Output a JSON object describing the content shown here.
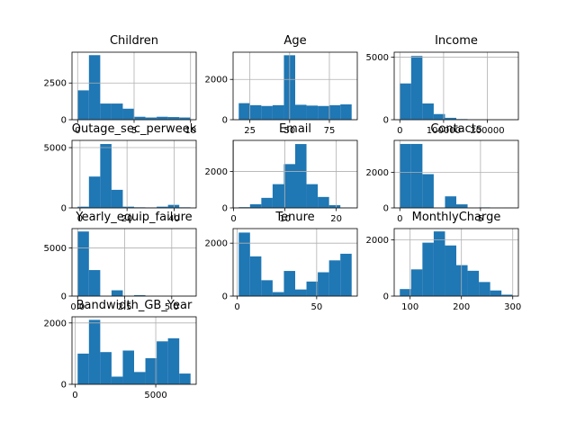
{
  "chart_data": [
    {
      "type": "histogram",
      "title": "Children",
      "bins": [
        0,
        1,
        2,
        3,
        4,
        5,
        6,
        7,
        8,
        9,
        10
      ],
      "values": [
        2000,
        4400,
        1100,
        1100,
        750,
        200,
        150,
        200,
        180,
        150
      ],
      "color": "#1f77b4",
      "xlim": [
        -0.5,
        10.5
      ],
      "ylim": [
        0,
        4600
      ],
      "xticks": [
        0,
        5,
        10
      ],
      "yticks": [
        0,
        2500
      ],
      "grid": true
    },
    {
      "type": "histogram",
      "title": "Age",
      "bins": [
        18,
        25.1,
        32.2,
        39.3,
        46.4,
        53.5,
        60.6,
        67.7,
        74.8,
        81.9,
        89
      ],
      "values": [
        820,
        720,
        680,
        720,
        3200,
        740,
        700,
        680,
        720,
        760
      ],
      "color": "#1f77b4",
      "xlim": [
        14.45,
        92.55
      ],
      "ylim": [
        0,
        3350
      ],
      "xticks": [
        25,
        50,
        75
      ],
      "yticks": [
        0,
        2000
      ],
      "grid": true
    },
    {
      "type": "histogram",
      "title": "Income",
      "bins": [
        0,
        25800,
        51600,
        77400,
        103200,
        129000,
        154800,
        180600,
        206400,
        232200,
        258000
      ],
      "values": [
        2900,
        5100,
        1300,
        450,
        150,
        50,
        20,
        10,
        5,
        5
      ],
      "color": "#1f77b4",
      "xlim": [
        -12900,
        270900
      ],
      "ylim": [
        0,
        5400
      ],
      "xticks": [
        0,
        100000,
        200000
      ],
      "yticks": [
        0,
        5000
      ],
      "grid": true
    },
    {
      "type": "histogram",
      "title": "Outage_sec_perweek",
      "bins": [
        -1,
        3.8,
        8.6,
        13.4,
        18.2,
        23,
        27.8,
        32.6,
        37.4,
        42.2,
        47
      ],
      "values": [
        100,
        2600,
        5300,
        1500,
        100,
        50,
        40,
        100,
        250,
        50
      ],
      "color": "#1f77b4",
      "xlim": [
        -3.4,
        49.4
      ],
      "ylim": [
        0,
        5600
      ],
      "xticks": [
        0,
        20,
        40
      ],
      "yticks": [
        0,
        5000
      ],
      "grid": true
    },
    {
      "type": "histogram",
      "title": "Email",
      "bins": [
        1,
        3.2,
        5.4,
        7.6,
        9.8,
        12,
        14.2,
        16.4,
        18.6,
        20.8,
        23
      ],
      "values": [
        40,
        200,
        550,
        1300,
        2400,
        3500,
        1300,
        600,
        150,
        20
      ],
      "color": "#1f77b4",
      "xlim": [
        -0.1,
        24.1
      ],
      "ylim": [
        0,
        3700
      ],
      "xticks": [
        0,
        10,
        20
      ],
      "yticks": [
        0,
        2000
      ],
      "grid": true
    },
    {
      "type": "histogram",
      "title": "Contacts",
      "bins": [
        0,
        0.7,
        1.4,
        2.1,
        2.8,
        3.5,
        4.2,
        4.9,
        5.6,
        6.3,
        7
      ],
      "values": [
        3600,
        3600,
        1900,
        0,
        650,
        200,
        0,
        30,
        0,
        5
      ],
      "color": "#1f77b4",
      "xlim": [
        -0.35,
        7.35
      ],
      "ylim": [
        0,
        3800
      ],
      "xticks": [
        0,
        5
      ],
      "yticks": [
        0,
        2000
      ],
      "grid": true
    },
    {
      "type": "histogram",
      "title": "Yearly_equip_failure",
      "bins": [
        0,
        0.6,
        1.2,
        1.8,
        2.4,
        3,
        3.6,
        4.2,
        4.8,
        5.4,
        6
      ],
      "values": [
        6700,
        2700,
        0,
        600,
        0,
        100,
        0,
        0,
        0,
        10
      ],
      "color": "#1f77b4",
      "xlim": [
        -0.3,
        6.3
      ],
      "ylim": [
        0,
        7000
      ],
      "xticks": [
        {
          "value": 0,
          "label": "0.0"
        },
        2.5,
        {
          "value": 5,
          "label": "5.0"
        }
      ],
      "yticks": [
        0,
        5000
      ],
      "grid": true
    },
    {
      "type": "histogram",
      "title": "Tenure",
      "bins": [
        1,
        8.1,
        15.2,
        22.3,
        29.4,
        36.5,
        43.6,
        50.7,
        57.8,
        64.9,
        72
      ],
      "values": [
        2400,
        1500,
        600,
        150,
        950,
        250,
        550,
        900,
        1350,
        1600
      ],
      "color": "#1f77b4",
      "xlim": [
        -2.55,
        75.55
      ],
      "ylim": [
        0,
        2550
      ],
      "xticks": [
        0,
        50
      ],
      "yticks": [
        0,
        2000
      ],
      "grid": true
    },
    {
      "type": "histogram",
      "title": "MonthlyCharge",
      "bins": [
        80,
        102,
        124,
        146,
        168,
        190,
        212,
        234,
        256,
        278,
        300
      ],
      "values": [
        250,
        950,
        1900,
        2300,
        1800,
        1100,
        900,
        500,
        200,
        50
      ],
      "color": "#1f77b4",
      "xlim": [
        69,
        311
      ],
      "ylim": [
        0,
        2400
      ],
      "xticks": [
        100,
        200,
        300
      ],
      "yticks": [
        0,
        2000
      ],
      "grid": true
    },
    {
      "type": "histogram",
      "title": "Bandwidth_GB_Year",
      "bins": [
        155,
        855.4,
        1555.8,
        2256.2,
        2956.6,
        3657,
        4357.4,
        5057.8,
        5758.2,
        6458.6,
        7159
      ],
      "values": [
        1000,
        2100,
        1050,
        250,
        1100,
        400,
        850,
        1400,
        1500,
        350
      ],
      "color": "#1f77b4",
      "xlim": [
        -195.2,
        7509.2
      ],
      "ylim": [
        0,
        2200
      ],
      "xticks": [
        0,
        5000
      ],
      "yticks": [
        0,
        2000
      ],
      "grid": true
    }
  ]
}
